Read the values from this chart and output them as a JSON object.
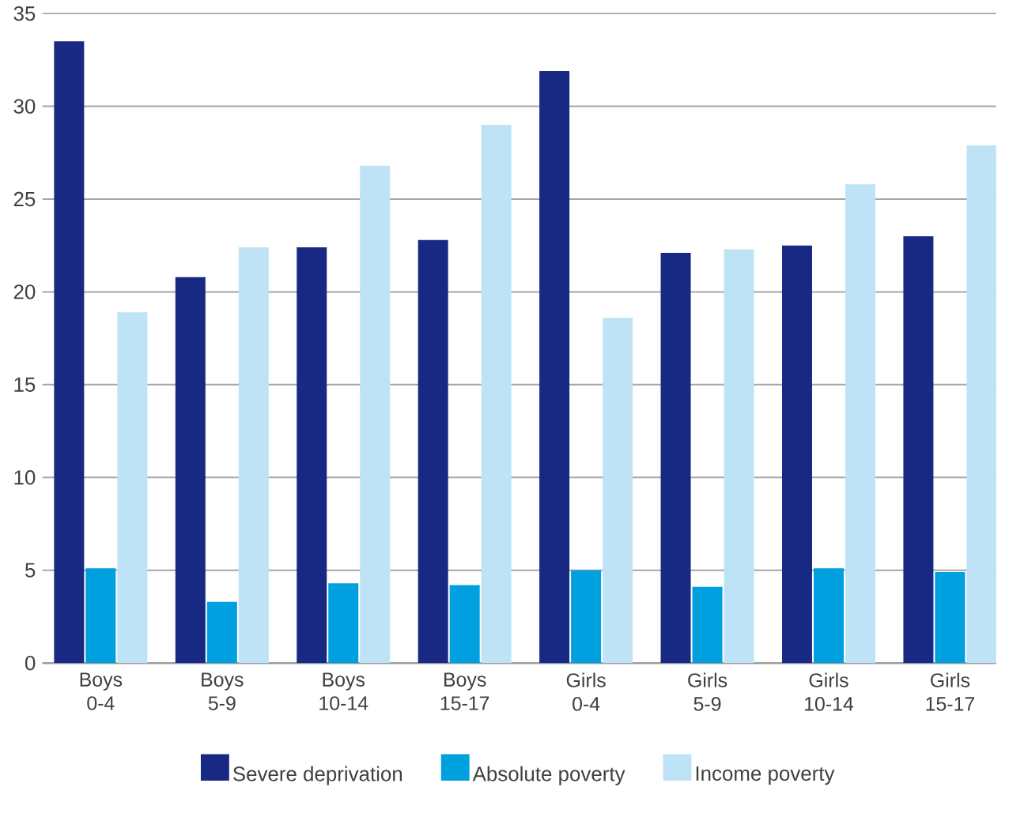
{
  "chart_data": {
    "type": "bar",
    "categories": [
      "Boys 0-4",
      "Boys 5-9",
      "Boys 10-14",
      "Boys 15-17",
      "Girls 0-4",
      "Girls 5-9",
      "Girls 10-14",
      "Girls 15-17"
    ],
    "series": [
      {
        "name": "Severe deprivation",
        "color": "#182983",
        "values": [
          33.5,
          20.8,
          22.4,
          22.8,
          31.9,
          22.1,
          22.5,
          23.0
        ]
      },
      {
        "name": "Absolute poverty",
        "color": "#009fe0",
        "values": [
          5.1,
          3.3,
          4.3,
          4.2,
          5.0,
          4.1,
          5.1,
          4.9
        ]
      },
      {
        "name": "Income poverty",
        "color": "#bee3f6",
        "values": [
          18.9,
          22.4,
          26.8,
          29.0,
          18.6,
          22.3,
          25.8,
          27.9
        ]
      }
    ],
    "ylim": [
      0,
      35
    ],
    "yticks": [
      0,
      5,
      10,
      15,
      20,
      25,
      30,
      35
    ],
    "grid": "y",
    "legend": "bottom"
  }
}
